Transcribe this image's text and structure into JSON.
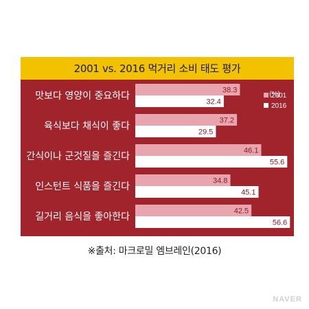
{
  "chart_data": {
    "type": "bar",
    "orientation": "horizontal",
    "title": "2001 vs. 2016 먹거리 소비 태도 평가",
    "unit": "(%)",
    "categories": [
      "맛보다 영양이 중요하다",
      "육식보다 채식이 좋다",
      "간식이나 군것질을 즐긴다",
      "인스턴트 식품을 즐긴다",
      "길거리 음식을 좋아한다"
    ],
    "series": [
      {
        "name": "2001",
        "values": [
          38.3,
          37.2,
          46.1,
          34.8,
          42.5
        ],
        "color": "#e8a5ad"
      },
      {
        "name": "2016",
        "values": [
          32.4,
          29.5,
          55.6,
          45.1,
          56.6
        ],
        "color": "#ffffff"
      }
    ],
    "xlim": [
      0,
      60
    ],
    "legend_position": "top-right",
    "grid": false
  },
  "source": "※출처: 마크로밀 엠브레인(2016)",
  "watermark": "NAVER",
  "colors": {
    "title_bar": "#f2c200",
    "panel": "#a1232b",
    "value_text": "#8a1c22"
  }
}
